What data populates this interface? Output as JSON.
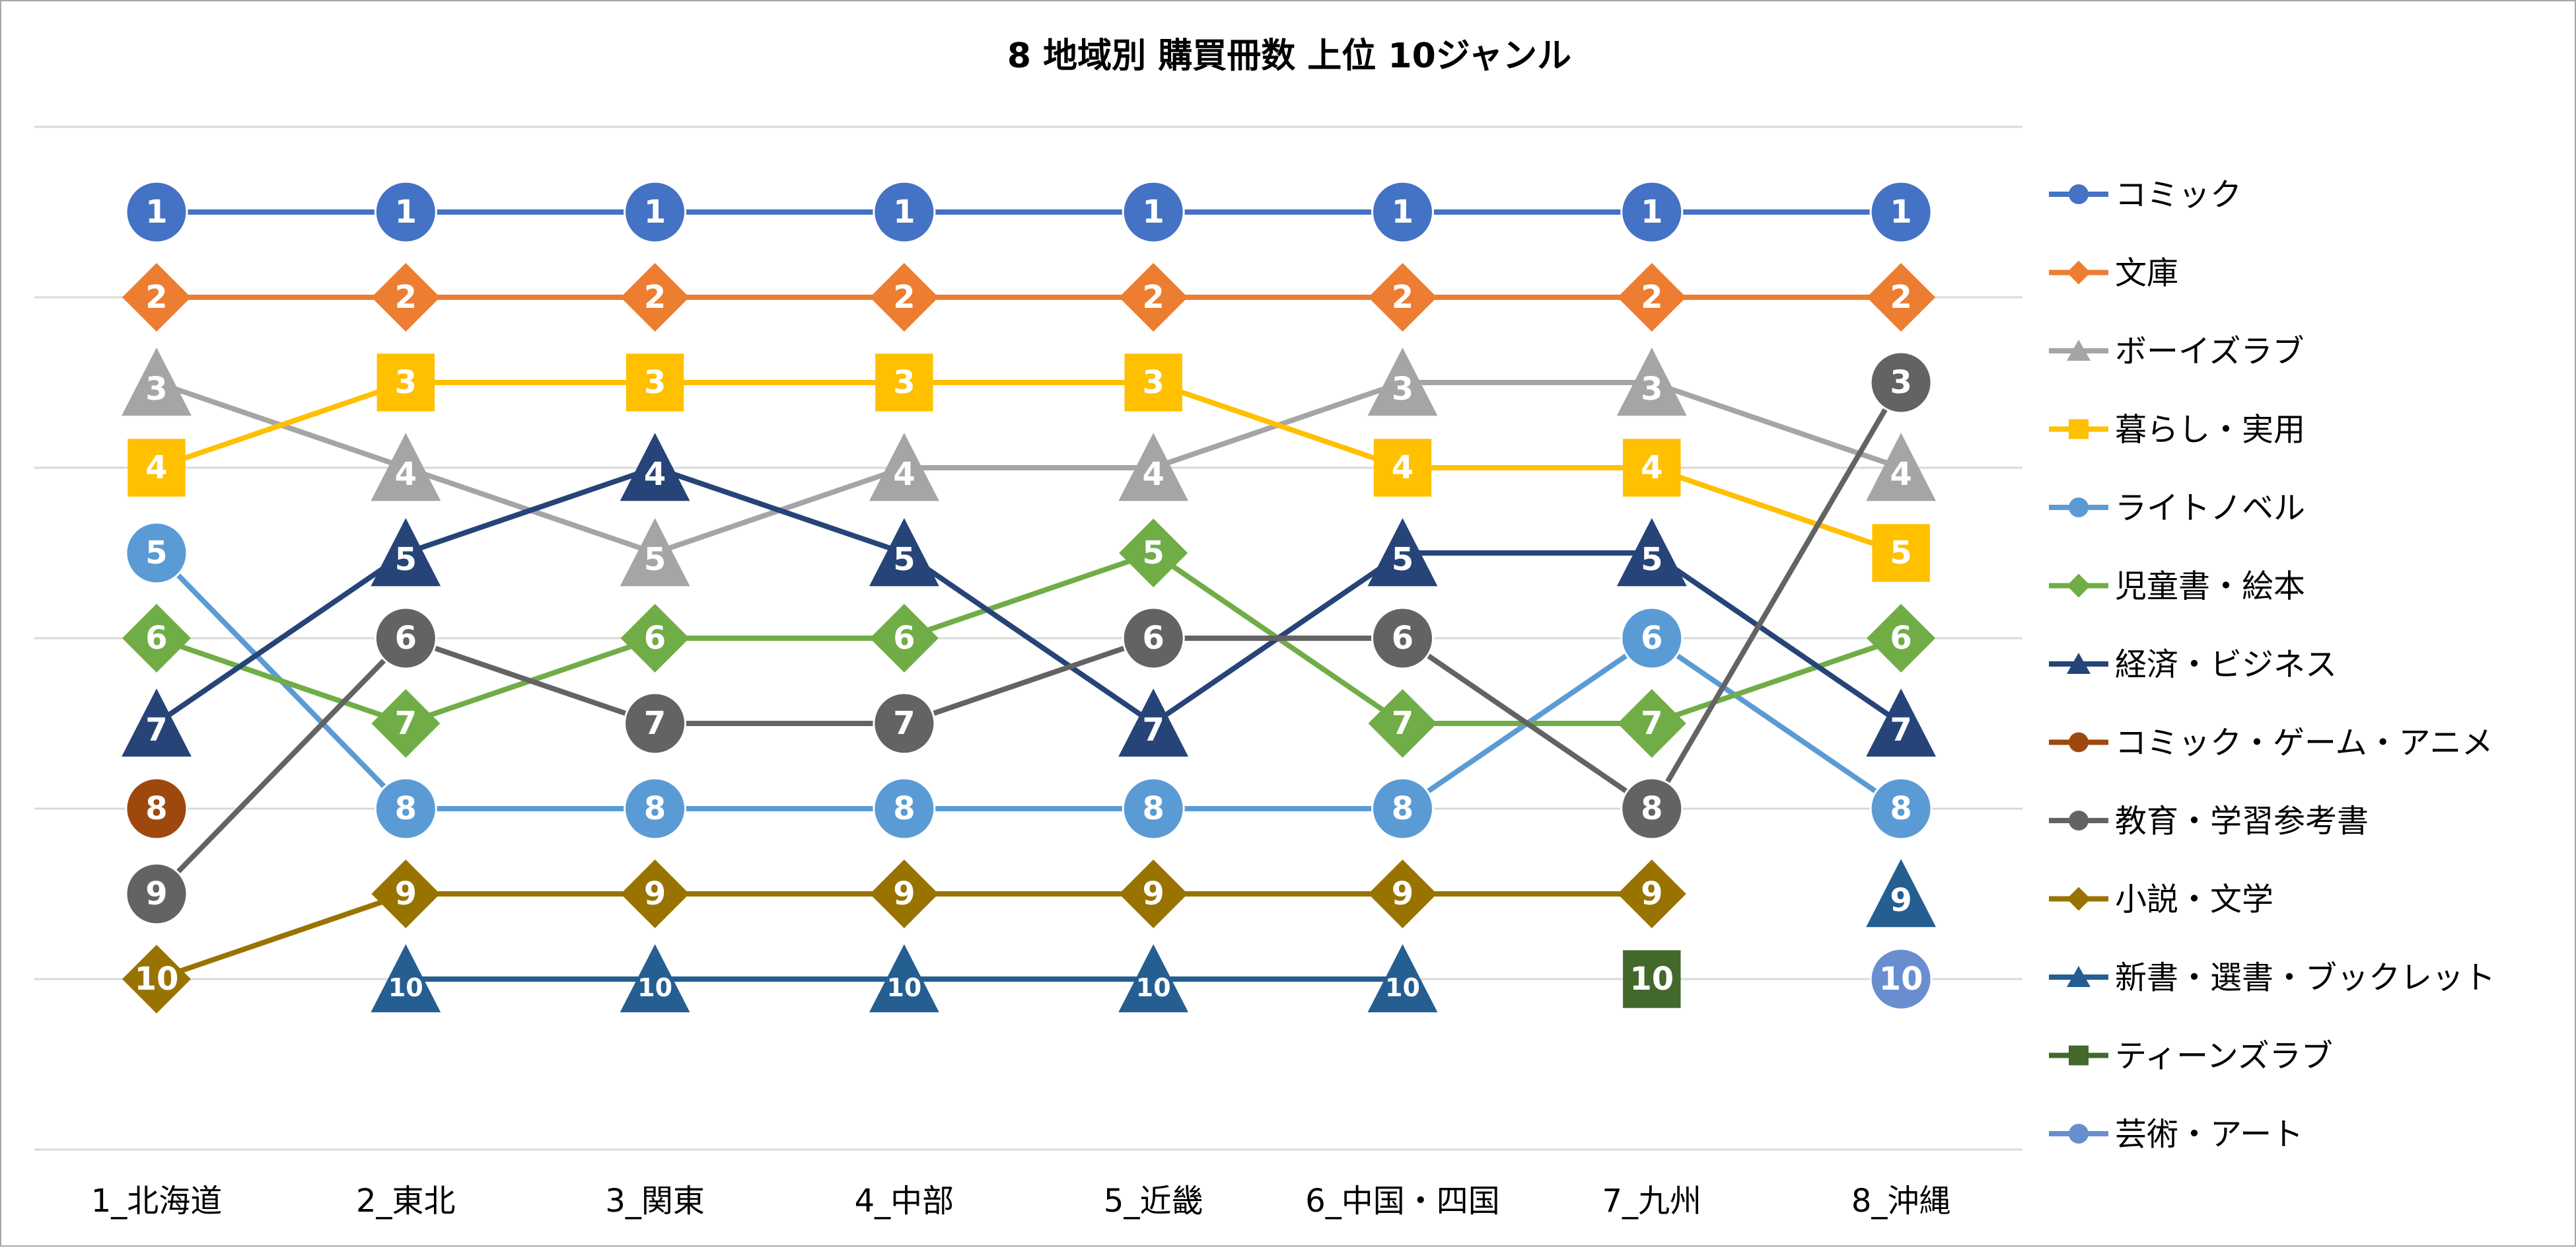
{
  "chart_data": {
    "type": "line",
    "title": "8 地域別 購買冊数 上位 10ジャンル",
    "xlabel": "",
    "ylabel": "",
    "ylim": [
      0,
      12
    ],
    "y_reversed": true,
    "grid": true,
    "legend_position": "right",
    "categories": [
      "1_北海道",
      "2_東北",
      "3_関東",
      "4_中部",
      "5_近畿",
      "6_中国・四国",
      "7_九州",
      "8_沖縄"
    ],
    "series": [
      {
        "name": "コミック",
        "color": "#4472C4",
        "marker": "circle",
        "values": [
          1,
          1,
          1,
          1,
          1,
          1,
          1,
          1
        ]
      },
      {
        "name": "文庫",
        "color": "#ED7D31",
        "marker": "diamond",
        "values": [
          2,
          2,
          2,
          2,
          2,
          2,
          2,
          2
        ]
      },
      {
        "name": "ボーイズラブ",
        "color": "#A5A5A5",
        "marker": "triangle",
        "values": [
          3,
          4,
          5,
          4,
          4,
          3,
          3,
          4
        ]
      },
      {
        "name": "暮らし・実用",
        "color": "#FFC000",
        "marker": "square",
        "values": [
          4,
          3,
          3,
          3,
          3,
          4,
          4,
          5
        ]
      },
      {
        "name": "ライトノベル",
        "color": "#5B9BD5",
        "marker": "circle",
        "values": [
          5,
          8,
          8,
          8,
          8,
          8,
          6,
          8
        ]
      },
      {
        "name": "児童書・絵本",
        "color": "#70AD47",
        "marker": "diamond",
        "values": [
          6,
          7,
          6,
          6,
          5,
          7,
          7,
          6
        ]
      },
      {
        "name": "経済・ビジネス",
        "color": "#264478",
        "marker": "triangle",
        "values": [
          7,
          5,
          4,
          5,
          7,
          5,
          5,
          7
        ]
      },
      {
        "name": "コミック・ゲーム・アニメ",
        "color": "#9E480E",
        "marker": "circle",
        "values": [
          8,
          null,
          null,
          null,
          null,
          null,
          null,
          null
        ]
      },
      {
        "name": "教育・学習参考書",
        "color": "#636363",
        "marker": "circle",
        "values": [
          9,
          6,
          7,
          7,
          6,
          6,
          8,
          3
        ]
      },
      {
        "name": "小説・文学",
        "color": "#997300",
        "marker": "diamond",
        "values": [
          10,
          9,
          9,
          9,
          9,
          9,
          9,
          null
        ]
      },
      {
        "name": "新書・選書・ブックレット",
        "color": "#255E91",
        "marker": "triangle",
        "values": [
          null,
          10,
          10,
          10,
          10,
          10,
          null,
          9
        ]
      },
      {
        "name": "ティーンズラブ",
        "color": "#43682B",
        "marker": "square",
        "values": [
          null,
          null,
          null,
          null,
          null,
          null,
          10,
          null
        ]
      },
      {
        "name": "芸術・アート",
        "color": "#698ED0",
        "marker": "circle",
        "values": [
          null,
          null,
          null,
          null,
          null,
          null,
          null,
          10
        ]
      }
    ]
  }
}
